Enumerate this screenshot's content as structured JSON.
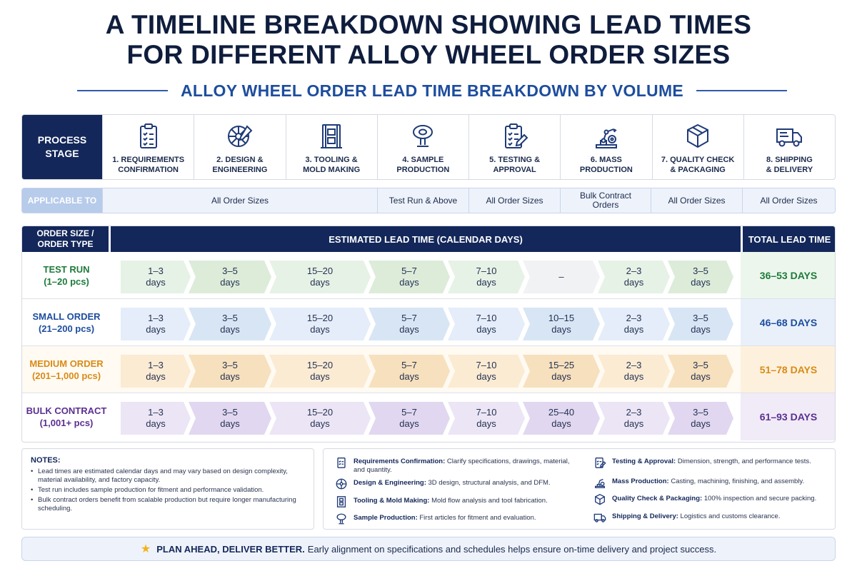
{
  "header": {
    "title_line1": "A TIMELINE BREAKDOWN SHOWING LEAD TIMES",
    "title_line2": "FOR DIFFERENT ALLOY WHEEL ORDER SIZES",
    "subtitle": "ALLOY WHEEL ORDER LEAD TIME BREAKDOWN BY VOLUME"
  },
  "process": {
    "label_line1": "PROCESS",
    "label_line2": "STAGE",
    "stages": [
      {
        "line1": "1. Requirements",
        "line2": "Confirmation",
        "icon": "clipboard-check-icon"
      },
      {
        "line1": "2. Design &",
        "line2": "Engineering",
        "icon": "wheel-design-icon"
      },
      {
        "line1": "3. Tooling &",
        "line2": "Mold Making",
        "icon": "mold-press-icon"
      },
      {
        "line1": "4. Sample",
        "line2": "Production",
        "icon": "sample-wheel-icon"
      },
      {
        "line1": "5. Testing &",
        "line2": "Approval",
        "icon": "checklist-pen-icon"
      },
      {
        "line1": "6. Mass",
        "line2": "Production",
        "icon": "robot-arm-icon"
      },
      {
        "line1": "7. Quality Check",
        "line2": "& Packaging",
        "icon": "box-icon"
      },
      {
        "line1": "8. Shipping",
        "line2": "& Delivery",
        "icon": "truck-icon"
      }
    ]
  },
  "applicable": {
    "label": "APPLICABLE TO",
    "cells": [
      {
        "text": "All Order Sizes"
      },
      {
        "text": "Test Run & Above"
      },
      {
        "text": "All Order Sizes"
      },
      {
        "text": "Bulk Contract Orders"
      },
      {
        "text": "All Order Sizes"
      },
      {
        "text": "All Order Sizes"
      }
    ]
  },
  "table": {
    "col_size_line1": "ORDER SIZE /",
    "col_size_line2": "ORDER TYPE",
    "col_estimate": "ESTIMATED LEAD TIME (CALENDAR DAYS)",
    "col_total": "TOTAL LEAD TIME",
    "unit": "days",
    "rows": [
      {
        "name": "TEST RUN",
        "qty": "(1–20 pcs)",
        "colors": {
          "label": "#1e7a3c",
          "fill": "#e6f2e5",
          "fill_alt": "#dcecd9",
          "bg": "#ffffff",
          "total_bg": "#edf6ec",
          "total_text": "#1e7a3c"
        },
        "stages": [
          "1–3",
          "3–5",
          "15–20",
          "5–7",
          "7–10",
          "–",
          "2–3",
          "3–5"
        ],
        "total": "36–53 DAYS"
      },
      {
        "name": "SMALL ORDER",
        "qty": "(21–200 pcs)",
        "colors": {
          "label": "#1d4d9e",
          "fill": "#e4edf9",
          "fill_alt": "#d8e5f5",
          "bg": "#ffffff",
          "total_bg": "#e9f0fa",
          "total_text": "#1d4d9e"
        },
        "stages": [
          "1–3",
          "3–5",
          "15–20",
          "5–7",
          "7–10",
          "10–15",
          "2–3",
          "3–5"
        ],
        "total": "46–68 DAYS"
      },
      {
        "name": "MEDIUM ORDER",
        "qty": "(201–1,000 pcs)",
        "colors": {
          "label": "#d98a16",
          "fill": "#fbebd3",
          "fill_alt": "#f7e0bd",
          "bg": "#fffaf2",
          "total_bg": "#fdf1dd",
          "total_text": "#d98a16"
        },
        "stages": [
          "1–3",
          "3–5",
          "15–20",
          "5–7",
          "7–10",
          "15–25",
          "2–3",
          "3–5"
        ],
        "total": "51–78 DAYS"
      },
      {
        "name": "BULK CONTRACT",
        "qty": "(1,001+ pcs)",
        "colors": {
          "label": "#5b2f91",
          "fill": "#ece5f5",
          "fill_alt": "#e1d7f0",
          "bg": "#ffffff",
          "total_bg": "#f0ebf7",
          "total_text": "#5b2f91"
        },
        "stages": [
          "1–3",
          "3–5",
          "15–20",
          "5–7",
          "7–10",
          "25–40",
          "2–3",
          "3–5"
        ],
        "total": "61–93 DAYS"
      }
    ]
  },
  "notes": {
    "title": "NOTES:",
    "items": [
      "Lead times are estimated calendar days and may vary based on design complexity, material availability, and factory capacity.",
      "Test run includes sample production for fitment and performance validation.",
      "Bulk contract orders benefit from scalable production but require longer manufacturing scheduling."
    ]
  },
  "legend": [
    {
      "term": "Requirements Confirmation:",
      "desc": "Clarify specifications, drawings, material, and quantity.",
      "icon": "clipboard-check-icon"
    },
    {
      "term": "Design & Engineering:",
      "desc": "3D design, structural analysis, and DFM.",
      "icon": "wheel-design-icon"
    },
    {
      "term": "Tooling & Mold Making:",
      "desc": "Mold flow analysis and tool fabrication.",
      "icon": "mold-press-icon"
    },
    {
      "term": "Sample Production:",
      "desc": "First articles for fitment and evaluation.",
      "icon": "sample-wheel-icon"
    },
    {
      "term": "Testing & Approval:",
      "desc": "Dimension, strength, and performance tests.",
      "icon": "checklist-pen-icon"
    },
    {
      "term": "Mass Production:",
      "desc": "Casting, machining, finishing, and assembly.",
      "icon": "robot-arm-icon"
    },
    {
      "term": "Quality Check & Packaging:",
      "desc": "100% inspection and secure packing.",
      "icon": "box-icon"
    },
    {
      "term": "Shipping & Delivery:",
      "desc": "Logistics and customs clearance.",
      "icon": "truck-icon"
    }
  ],
  "banner": {
    "icon": "star-icon",
    "bold": "PLAN AHEAD, DELIVER BETTER.",
    "text": "Early alignment on specifications and schedules helps ensure on-time delivery and project success."
  }
}
